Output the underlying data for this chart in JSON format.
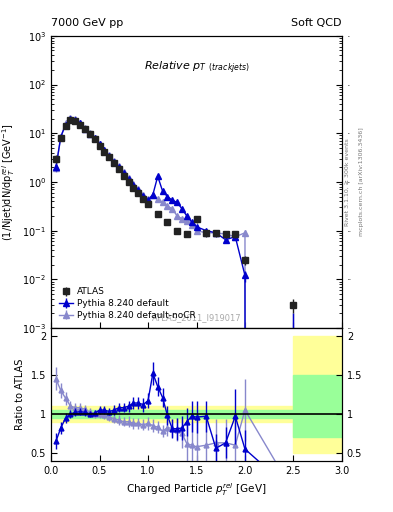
{
  "title_left": "7000 GeV pp",
  "title_right": "Soft QCD",
  "plot_title": "Relative $p_T$ $_{(track jets)}$",
  "xlabel": "Charged Particle $p_T^{rel}$ [GeV]",
  "ylabel_main": "(1/Njet)dN/dp$_T^{rel}$ [GeV$^{-1}$]",
  "ylabel_ratio": "Ratio to ATLAS",
  "right_label": "mcplots.cern.ch [arXiv:1306.3436]",
  "right_label2": "Rivet 3.1.10, ≥ 300k events",
  "watermark": "ATLAS_2011_I919017",
  "ylim_main": [
    0.001,
    1000.0
  ],
  "ylim_ratio": [
    0.4,
    2.1
  ],
  "xlim": [
    0,
    3.0
  ],
  "atlas_x": [
    0.05,
    0.1,
    0.15,
    0.2,
    0.25,
    0.3,
    0.35,
    0.4,
    0.45,
    0.5,
    0.55,
    0.6,
    0.65,
    0.7,
    0.75,
    0.8,
    0.85,
    0.9,
    0.95,
    1.0,
    1.1,
    1.2,
    1.3,
    1.4,
    1.5,
    1.6,
    1.7,
    1.8,
    1.9,
    2.0,
    2.5
  ],
  "atlas_y": [
    3.0,
    8.0,
    14.0,
    19.0,
    18.0,
    15.0,
    12.0,
    9.5,
    7.5,
    5.5,
    4.2,
    3.2,
    2.4,
    1.8,
    1.35,
    1.0,
    0.75,
    0.58,
    0.45,
    0.35,
    0.22,
    0.15,
    0.1,
    0.085,
    0.17,
    0.09,
    0.09,
    0.085,
    0.085,
    0.025,
    0.003
  ],
  "atlas_yerr": [
    0.5,
    0.8,
    1.0,
    1.2,
    1.1,
    0.9,
    0.7,
    0.5,
    0.4,
    0.3,
    0.25,
    0.18,
    0.14,
    0.1,
    0.08,
    0.06,
    0.05,
    0.04,
    0.03,
    0.025,
    0.018,
    0.013,
    0.01,
    0.009,
    0.025,
    0.015,
    0.015,
    0.015,
    0.015,
    0.005,
    0.001
  ],
  "pythia_x": [
    0.05,
    0.1,
    0.15,
    0.2,
    0.25,
    0.3,
    0.35,
    0.4,
    0.45,
    0.5,
    0.55,
    0.6,
    0.65,
    0.7,
    0.75,
    0.8,
    0.85,
    0.9,
    0.95,
    1.0,
    1.05,
    1.1,
    1.15,
    1.2,
    1.25,
    1.3,
    1.35,
    1.4,
    1.45,
    1.5,
    1.6,
    1.7,
    1.8,
    1.9,
    2.0,
    2.5
  ],
  "pythia_y": [
    2.0,
    8.5,
    15.0,
    20.0,
    19.0,
    16.0,
    12.5,
    9.8,
    7.8,
    6.0,
    4.5,
    3.4,
    2.6,
    2.0,
    1.5,
    1.15,
    0.88,
    0.68,
    0.52,
    0.42,
    0.55,
    1.3,
    0.65,
    0.5,
    0.42,
    0.38,
    0.28,
    0.2,
    0.15,
    0.12,
    0.1,
    0.09,
    0.065,
    0.075,
    0.012,
    0.0
  ],
  "pythia_yerr": [
    0.3,
    0.5,
    0.6,
    0.7,
    0.6,
    0.5,
    0.4,
    0.3,
    0.25,
    0.2,
    0.15,
    0.12,
    0.1,
    0.08,
    0.06,
    0.05,
    0.04,
    0.035,
    0.03,
    0.025,
    0.035,
    0.08,
    0.05,
    0.04,
    0.03,
    0.03,
    0.025,
    0.02,
    0.015,
    0.012,
    0.01,
    0.009,
    0.008,
    0.009,
    0.003,
    0.002
  ],
  "nocr_x": [
    0.05,
    0.1,
    0.15,
    0.2,
    0.25,
    0.3,
    0.35,
    0.4,
    0.45,
    0.5,
    0.55,
    0.6,
    0.65,
    0.7,
    0.75,
    0.8,
    0.85,
    0.9,
    0.95,
    1.0,
    1.05,
    1.1,
    1.15,
    1.2,
    1.25,
    1.3,
    1.35,
    1.4,
    1.45,
    1.5,
    1.6,
    1.7,
    1.8,
    1.9,
    2.0,
    2.5
  ],
  "nocr_y": [
    1.9,
    8.2,
    16.0,
    20.5,
    19.5,
    16.5,
    13.0,
    10.0,
    8.0,
    6.1,
    4.6,
    3.5,
    2.7,
    2.1,
    1.6,
    1.2,
    0.92,
    0.72,
    0.55,
    0.44,
    0.55,
    0.45,
    0.38,
    0.32,
    0.28,
    0.2,
    0.175,
    0.16,
    0.13,
    0.1,
    0.09,
    0.09,
    0.085,
    0.075,
    0.09,
    0.0
  ],
  "nocr_yerr": [
    0.3,
    0.5,
    0.6,
    0.7,
    0.6,
    0.5,
    0.4,
    0.3,
    0.25,
    0.2,
    0.15,
    0.12,
    0.1,
    0.08,
    0.06,
    0.05,
    0.04,
    0.035,
    0.03,
    0.025,
    0.035,
    0.03,
    0.025,
    0.02,
    0.018,
    0.015,
    0.014,
    0.013,
    0.012,
    0.01,
    0.009,
    0.009,
    0.009,
    0.009,
    0.012,
    0.002
  ],
  "color_atlas": "#222222",
  "color_pythia": "#0000cc",
  "color_nocr": "#8888cc",
  "color_yellow": "#ffff99",
  "color_green": "#99ff99",
  "ratio_pythia": [
    0.65,
    0.82,
    0.95,
    1.0,
    1.02,
    1.03,
    1.02,
    1.0,
    1.01,
    1.05,
    1.05,
    1.03,
    1.05,
    1.08,
    1.08,
    1.1,
    1.14,
    1.14,
    1.12,
    1.17,
    1.52,
    1.35,
    1.21,
    0.98,
    0.81,
    0.81,
    0.82,
    0.9,
    0.97,
    0.96,
    0.97,
    0.56,
    0.63,
    0.97,
    0.55,
    0.0
  ],
  "ratio_pythia_err": [
    0.1,
    0.08,
    0.06,
    0.05,
    0.05,
    0.05,
    0.05,
    0.04,
    0.04,
    0.05,
    0.05,
    0.05,
    0.06,
    0.06,
    0.06,
    0.07,
    0.08,
    0.08,
    0.09,
    0.1,
    0.15,
    0.12,
    0.12,
    0.12,
    0.12,
    0.14,
    0.15,
    0.18,
    0.2,
    0.2,
    0.2,
    0.18,
    0.2,
    0.35,
    0.25,
    0.1
  ],
  "ratio_nocr": [
    1.45,
    1.3,
    1.2,
    1.1,
    1.08,
    1.08,
    1.06,
    1.02,
    1.0,
    1.0,
    0.98,
    0.96,
    0.94,
    0.92,
    0.9,
    0.9,
    0.88,
    0.88,
    0.86,
    0.88,
    0.85,
    0.83,
    0.78,
    0.82,
    0.82,
    0.8,
    0.75,
    0.62,
    0.6,
    0.58,
    0.6,
    0.63,
    0.63,
    0.6,
    1.05,
    0.0
  ],
  "ratio_nocr_err": [
    0.15,
    0.1,
    0.08,
    0.07,
    0.06,
    0.06,
    0.06,
    0.05,
    0.05,
    0.05,
    0.05,
    0.05,
    0.06,
    0.06,
    0.06,
    0.07,
    0.07,
    0.07,
    0.07,
    0.08,
    0.08,
    0.08,
    0.08,
    0.1,
    0.12,
    0.15,
    0.18,
    0.25,
    0.3,
    0.35,
    0.35,
    0.3,
    0.3,
    0.3,
    0.4,
    0.1
  ]
}
